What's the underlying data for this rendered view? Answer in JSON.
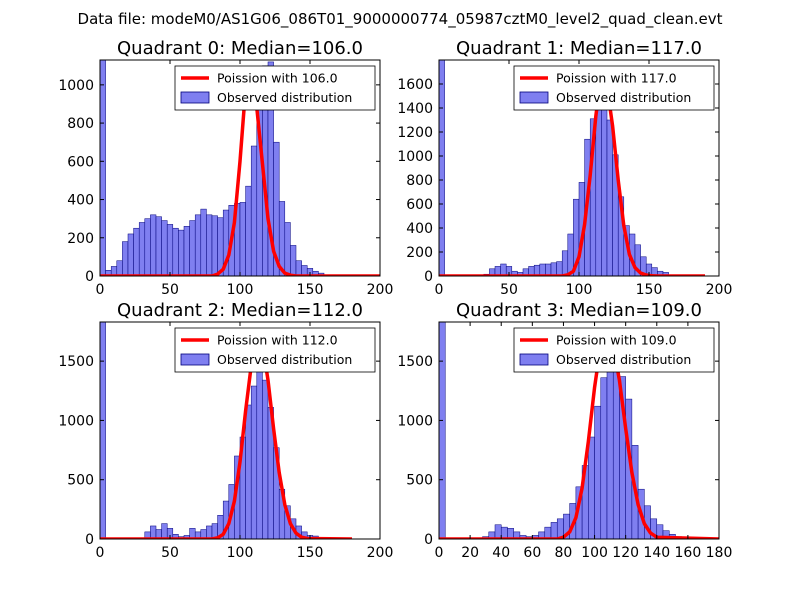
{
  "figure_title": "Data file: modeM0/AS1G06_086T01_9000000774_05987cztM0_level2_quad_clean.evt",
  "colors": {
    "bar_fill": "#7f7ff0",
    "bar_edge": "#00007a",
    "curve": "#ff0000",
    "axes": "#000000"
  },
  "chart_data": [
    {
      "type": "bar",
      "title": "Quadrant 0: Median=106.0",
      "median": 106.0,
      "legend": [
        "Poission with 106.0",
        "Observed distribution"
      ],
      "legend_position": "top-right",
      "xlim": [
        0,
        200
      ],
      "ylim": [
        0,
        1130
      ],
      "xticks": [
        0,
        50,
        100,
        150,
        200
      ],
      "yticks": [
        0,
        200,
        400,
        600,
        800,
        1000
      ],
      "bin_width": 4,
      "bin_starts": [
        0,
        4,
        8,
        12,
        16,
        20,
        24,
        28,
        32,
        36,
        40,
        44,
        48,
        52,
        56,
        60,
        64,
        68,
        72,
        76,
        80,
        84,
        88,
        92,
        96,
        100,
        104,
        108,
        112,
        116,
        120,
        124,
        128,
        132,
        136,
        140,
        144,
        148,
        152,
        156
      ],
      "values": [
        1130,
        30,
        50,
        80,
        180,
        220,
        250,
        280,
        300,
        320,
        310,
        290,
        270,
        250,
        240,
        260,
        290,
        320,
        350,
        320,
        315,
        305,
        345,
        370,
        380,
        385,
        470,
        680,
        1050,
        1100,
        1120,
        700,
        390,
        280,
        160,
        80,
        55,
        40,
        25,
        15
      ],
      "poisson_x": [
        0,
        80,
        84,
        88,
        92,
        96,
        100,
        104,
        108,
        112,
        116,
        120,
        124,
        128,
        132,
        136,
        140,
        200
      ],
      "poisson_y": [
        0,
        0,
        10,
        35,
        110,
        280,
        600,
        980,
        1070,
        880,
        590,
        300,
        130,
        50,
        15,
        4,
        0,
        0
      ]
    },
    {
      "type": "bar",
      "title": "Quadrant 1: Median=117.0",
      "median": 117.0,
      "legend": [
        "Poission with 117.0",
        "Observed distribution"
      ],
      "legend_position": "top-right",
      "xlim": [
        0,
        200
      ],
      "ylim": [
        0,
        1800
      ],
      "xticks": [
        0,
        50,
        100,
        150,
        200
      ],
      "yticks": [
        0,
        200,
        400,
        600,
        800,
        1000,
        1200,
        1400,
        1600
      ],
      "bin_width": 4,
      "bin_starts": [
        0,
        4,
        8,
        12,
        16,
        20,
        24,
        28,
        32,
        36,
        40,
        44,
        48,
        52,
        56,
        60,
        64,
        68,
        72,
        76,
        80,
        84,
        88,
        92,
        96,
        100,
        104,
        108,
        112,
        116,
        120,
        124,
        128,
        132,
        136,
        140,
        144,
        148,
        152,
        156,
        160,
        164
      ],
      "values": [
        1800,
        0,
        0,
        0,
        0,
        0,
        0,
        5,
        15,
        60,
        80,
        100,
        80,
        40,
        30,
        60,
        80,
        90,
        100,
        100,
        110,
        120,
        210,
        350,
        640,
        780,
        1140,
        1310,
        1680,
        1560,
        1300,
        1010,
        660,
        420,
        350,
        260,
        160,
        100,
        70,
        40,
        30,
        10
      ],
      "poisson_x": [
        0,
        88,
        92,
        96,
        100,
        104,
        108,
        112,
        116,
        120,
        124,
        128,
        132,
        136,
        140,
        144,
        148,
        152,
        156,
        190
      ],
      "poisson_y": [
        0,
        0,
        10,
        40,
        160,
        430,
        840,
        1330,
        1690,
        1580,
        1250,
        800,
        420,
        180,
        70,
        25,
        8,
        2,
        0,
        0
      ]
    },
    {
      "type": "bar",
      "title": "Quadrant 2: Median=112.0",
      "median": 112.0,
      "legend": [
        "Poission with 112.0",
        "Observed distribution"
      ],
      "legend_position": "top-right",
      "xlim": [
        0,
        200
      ],
      "ylim": [
        0,
        1830
      ],
      "xticks": [
        0,
        50,
        100,
        150,
        200
      ],
      "yticks": [
        0,
        500,
        1000,
        1500
      ],
      "bin_width": 4,
      "bin_starts": [
        0,
        4,
        8,
        12,
        16,
        20,
        24,
        28,
        32,
        36,
        40,
        44,
        48,
        52,
        56,
        60,
        64,
        68,
        72,
        76,
        80,
        84,
        88,
        92,
        96,
        100,
        104,
        108,
        112,
        116,
        120,
        124,
        128,
        132,
        136,
        140,
        144,
        148,
        152,
        156
      ],
      "values": [
        1830,
        0,
        0,
        0,
        0,
        0,
        0,
        10,
        60,
        110,
        80,
        130,
        90,
        40,
        20,
        30,
        90,
        60,
        80,
        110,
        130,
        200,
        320,
        460,
        700,
        860,
        1130,
        1290,
        1490,
        1340,
        1110,
        770,
        420,
        280,
        170,
        110,
        60,
        30,
        25,
        10
      ],
      "poisson_x": [
        0,
        80,
        84,
        88,
        92,
        96,
        100,
        104,
        108,
        112,
        116,
        120,
        124,
        128,
        132,
        136,
        140,
        144,
        148,
        180
      ],
      "poisson_y": [
        0,
        0,
        10,
        40,
        130,
        320,
        650,
        1080,
        1460,
        1720,
        1650,
        1340,
        930,
        560,
        290,
        130,
        50,
        15,
        4,
        0
      ]
    },
    {
      "type": "bar",
      "title": "Quadrant 3: Median=109.0",
      "median": 109.0,
      "legend": [
        "Poission with 109.0",
        "Observed distribution"
      ],
      "legend_position": "top-right",
      "xlim": [
        0,
        180
      ],
      "ylim": [
        0,
        1830
      ],
      "xticks": [
        0,
        20,
        40,
        60,
        80,
        100,
        120,
        140,
        160,
        180
      ],
      "yticks": [
        0,
        500,
        1000,
        1500
      ],
      "bin_width": 4,
      "bin_starts": [
        0,
        4,
        8,
        12,
        16,
        20,
        24,
        28,
        32,
        36,
        40,
        44,
        48,
        52,
        56,
        60,
        64,
        68,
        72,
        76,
        80,
        84,
        88,
        92,
        96,
        100,
        104,
        108,
        112,
        116,
        120,
        124,
        128,
        132,
        136,
        140,
        144,
        148,
        152,
        156
      ],
      "values": [
        1830,
        0,
        0,
        0,
        0,
        0,
        0,
        20,
        60,
        120,
        100,
        90,
        60,
        30,
        20,
        30,
        60,
        100,
        140,
        170,
        210,
        300,
        440,
        620,
        860,
        1120,
        1360,
        1490,
        1670,
        1370,
        1180,
        790,
        420,
        280,
        170,
        120,
        70,
        40,
        20,
        10
      ],
      "poisson_x": [
        0,
        76,
        80,
        84,
        88,
        92,
        96,
        100,
        104,
        108,
        112,
        116,
        120,
        124,
        128,
        132,
        136,
        140,
        180
      ],
      "poisson_y": [
        0,
        0,
        15,
        60,
        180,
        430,
        820,
        1280,
        1640,
        1740,
        1630,
        1340,
        930,
        560,
        290,
        130,
        50,
        15,
        0
      ]
    }
  ]
}
